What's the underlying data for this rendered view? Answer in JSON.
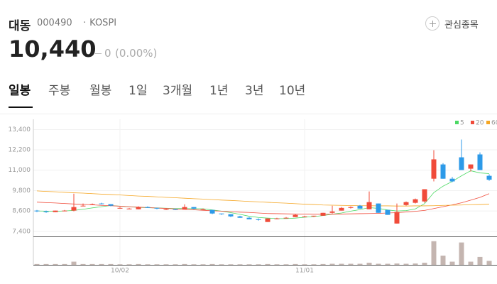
{
  "header": {
    "name": "대동",
    "code": "000490",
    "market": "KOSPI",
    "watch": "관심종목",
    "price": "10,440",
    "change": "0",
    "change_pct": "(0.00%)"
  },
  "tabs": [
    "일봉",
    "주봉",
    "월봉",
    "1일",
    "3개월",
    "1년",
    "3년",
    "10년"
  ],
  "chart_data": {
    "type": "candlestick",
    "x": [
      null,
      null,
      null,
      null,
      null,
      null,
      null,
      null,
      null,
      "10/02",
      null,
      null,
      null,
      null,
      null,
      null,
      null,
      null,
      null,
      null,
      null,
      null,
      null,
      null,
      null,
      null,
      null,
      null,
      null,
      "11/01",
      null,
      null,
      null,
      null,
      null,
      null,
      null,
      null,
      null,
      null,
      null,
      null,
      null,
      null,
      null,
      null,
      null,
      null,
      null,
      null
    ],
    "ohlc": [
      [
        8620,
        8660,
        8530,
        8580
      ],
      [
        8580,
        8620,
        8490,
        8530
      ],
      [
        8530,
        8620,
        8530,
        8620
      ],
      [
        8580,
        8660,
        8580,
        8620
      ],
      [
        8620,
        9620,
        8580,
        8830
      ],
      [
        8910,
        9040,
        8870,
        8910
      ],
      [
        8950,
        9040,
        8950,
        9000
      ],
      [
        9040,
        9080,
        8990,
        9000
      ],
      [
        9000,
        9000,
        8870,
        8910
      ],
      [
        8780,
        8830,
        8740,
        8780
      ],
      [
        8740,
        8780,
        8700,
        8740
      ],
      [
        8700,
        8870,
        8700,
        8830
      ],
      [
        8830,
        8870,
        8780,
        8780
      ],
      [
        8780,
        8780,
        8700,
        8740
      ],
      [
        8700,
        8740,
        8660,
        8700
      ],
      [
        8700,
        8740,
        8660,
        8660
      ],
      [
        8700,
        8990,
        8700,
        8830
      ],
      [
        8830,
        8830,
        8700,
        8740
      ],
      [
        8700,
        8740,
        8660,
        8700
      ],
      [
        8660,
        8660,
        8410,
        8450
      ],
      [
        8450,
        8450,
        8370,
        8410
      ],
      [
        8410,
        8410,
        8240,
        8280
      ],
      [
        8280,
        8320,
        8200,
        8200
      ],
      [
        8200,
        8240,
        8110,
        8110
      ],
      [
        8110,
        8160,
        8030,
        8070
      ],
      [
        7950,
        8160,
        7950,
        8160
      ],
      [
        8160,
        8200,
        8110,
        8160
      ],
      [
        8200,
        8240,
        8160,
        8200
      ],
      [
        8240,
        8410,
        8240,
        8370
      ],
      [
        8280,
        8320,
        8240,
        8280
      ],
      [
        8280,
        8320,
        8240,
        8320
      ],
      [
        8320,
        8490,
        8320,
        8490
      ],
      [
        8490,
        8910,
        8450,
        8570
      ],
      [
        8620,
        8830,
        8620,
        8780
      ],
      [
        8780,
        8870,
        8740,
        8830
      ],
      [
        8910,
        8950,
        8740,
        8740
      ],
      [
        8700,
        9750,
        8700,
        9120
      ],
      [
        9040,
        9040,
        8490,
        8490
      ],
      [
        8660,
        8660,
        8370,
        8370
      ],
      [
        7860,
        9040,
        7860,
        8540
      ],
      [
        8950,
        9160,
        8910,
        9120
      ],
      [
        9080,
        9330,
        9040,
        9290
      ],
      [
        9160,
        9880,
        9080,
        9880
      ],
      [
        10500,
        12180,
        10340,
        11640
      ],
      [
        11340,
        11420,
        10500,
        10500
      ],
      [
        10500,
        10600,
        10300,
        10340
      ],
      [
        11760,
        12810,
        11010,
        11010
      ],
      [
        11090,
        11340,
        10920,
        11340
      ],
      [
        11930,
        12050,
        11010,
        11010
      ],
      [
        10670,
        10760,
        10380,
        10440
      ]
    ],
    "up_color": "#f04b3a",
    "down_color": "#2d9ae8",
    "series": [
      {
        "name": "5",
        "color": "#4cd964",
        "values": [
          8600,
          8590,
          8580,
          8600,
          8630,
          8700,
          8780,
          8850,
          8920,
          8880,
          8850,
          8810,
          8790,
          8780,
          8760,
          8740,
          8740,
          8730,
          8730,
          8660,
          8590,
          8500,
          8400,
          8290,
          8220,
          8180,
          8150,
          8150,
          8180,
          8230,
          8270,
          8330,
          8410,
          8480,
          8590,
          8680,
          8800,
          8750,
          8660,
          8600,
          8620,
          8720,
          9030,
          9680,
          10060,
          10340,
          10670,
          10970,
          10840,
          10800
        ]
      },
      {
        "name": "20",
        "color": "#f04b3a",
        "values": [
          9120,
          9090,
          9070,
          9040,
          9010,
          8990,
          8960,
          8930,
          8910,
          8880,
          8850,
          8830,
          8800,
          8770,
          8750,
          8720,
          8690,
          8670,
          8640,
          8610,
          8590,
          8560,
          8530,
          8510,
          8480,
          8450,
          8440,
          8430,
          8420,
          8420,
          8410,
          8410,
          8410,
          8420,
          8430,
          8440,
          8450,
          8460,
          8480,
          8500,
          8540,
          8580,
          8630,
          8740,
          8850,
          8960,
          9080,
          9240,
          9400,
          9620
        ]
      },
      {
        "name": "60",
        "color": "#f5a623",
        "values": [
          9780,
          9750,
          9730,
          9700,
          9670,
          9650,
          9620,
          9590,
          9570,
          9540,
          9510,
          9480,
          9460,
          9430,
          9400,
          9380,
          9350,
          9320,
          9300,
          9270,
          9240,
          9220,
          9190,
          9160,
          9140,
          9110,
          9080,
          9060,
          9030,
          9000,
          8980,
          8950,
          8940,
          8930,
          8920,
          8910,
          8910,
          8900,
          8900,
          8890,
          8890,
          8900,
          8900,
          8910,
          8930,
          8940,
          8950,
          8970,
          8980,
          9000
        ]
      }
    ],
    "ylim": [
      7100,
      14000
    ],
    "yticks": [
      {
        "value": 7400,
        "label": "7,400"
      },
      {
        "value": 8600,
        "label": "8,600"
      },
      {
        "value": 9800,
        "label": "9,800"
      },
      {
        "value": 11000,
        "label": "11,000"
      },
      {
        "value": 12200,
        "label": "12,200"
      },
      {
        "value": 13400,
        "label": "13,400"
      }
    ],
    "grid": true,
    "volume": [
      3,
      3,
      3,
      3,
      12,
      3,
      3,
      3,
      3,
      2,
      2,
      3,
      2,
      2,
      2,
      2,
      3,
      2,
      2,
      3,
      2,
      2,
      2,
      2,
      2,
      3,
      2,
      2,
      3,
      2,
      2,
      3,
      4,
      4,
      4,
      4,
      8,
      4,
      4,
      5,
      4,
      5,
      8,
      90,
      35,
      12,
      85,
      12,
      30,
      15
    ],
    "volume_color": "#c4b5b0",
    "volume_ylim": [
      0,
      100
    ]
  }
}
